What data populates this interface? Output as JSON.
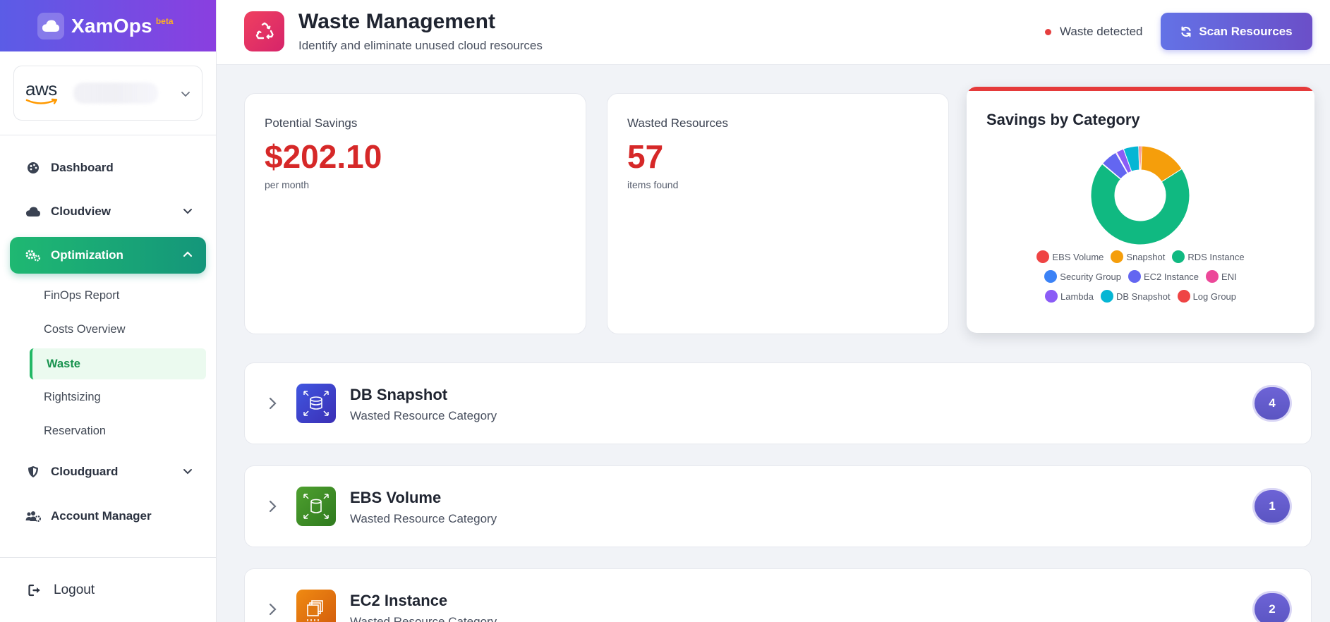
{
  "app": {
    "name": "XamOps",
    "badge": "beta"
  },
  "account": {
    "provider_logo": "aws"
  },
  "nav": {
    "dashboard": "Dashboard",
    "cloudview": "Cloudview",
    "optimization": "Optimization",
    "sub": [
      "FinOps Report",
      "Costs Overview",
      "Waste",
      "Rightsizing",
      "Reservation"
    ],
    "cloudguard": "Cloudguard",
    "account_manager": "Account Manager",
    "logout": "Logout"
  },
  "header": {
    "title": "Waste Management",
    "subtitle": "Identify and eliminate unused cloud resources",
    "status": "Waste detected",
    "scan_button": "Scan Resources"
  },
  "stats": {
    "savings": {
      "label": "Potential Savings",
      "value": "$202.10",
      "sub": "per month"
    },
    "wasted": {
      "label": "Wasted Resources",
      "value": "57",
      "sub": "items found"
    }
  },
  "chart_data": {
    "type": "pie",
    "title": "Savings by Category",
    "donut": true,
    "legend_position": "bottom",
    "categories": [
      "EBS Volume",
      "Snapshot",
      "RDS Instance",
      "Security Group",
      "EC2 Instance",
      "ENI",
      "Lambda",
      "DB Snapshot",
      "Log Group"
    ],
    "values": [
      0.5,
      15.5,
      70,
      0.2,
      5.5,
      0.3,
      2.5,
      5,
      0.5
    ],
    "colors": [
      "#ef4444",
      "#f59e0b",
      "#10b981",
      "#3b82f6",
      "#6366f1",
      "#ec4899",
      "#8b5cf6",
      "#06b6d4",
      "#ef4444"
    ]
  },
  "categories": [
    {
      "name": "DB Snapshot",
      "sub": "Wasted Resource Category",
      "count": "4",
      "icon": "db-snapshot-icon"
    },
    {
      "name": "EBS Volume",
      "sub": "Wasted Resource Category",
      "count": "1",
      "icon": "ebs-volume-icon"
    },
    {
      "name": "EC2 Instance",
      "sub": "Wasted Resource Category",
      "count": "2",
      "icon": "ec2-instance-icon"
    }
  ],
  "colors": {
    "brand_gradient_start": "#5b5ce6",
    "brand_gradient_end": "#8a3fe0",
    "active_nav": "#1fb872",
    "danger": "#d62828",
    "accent": "#6372e6"
  }
}
